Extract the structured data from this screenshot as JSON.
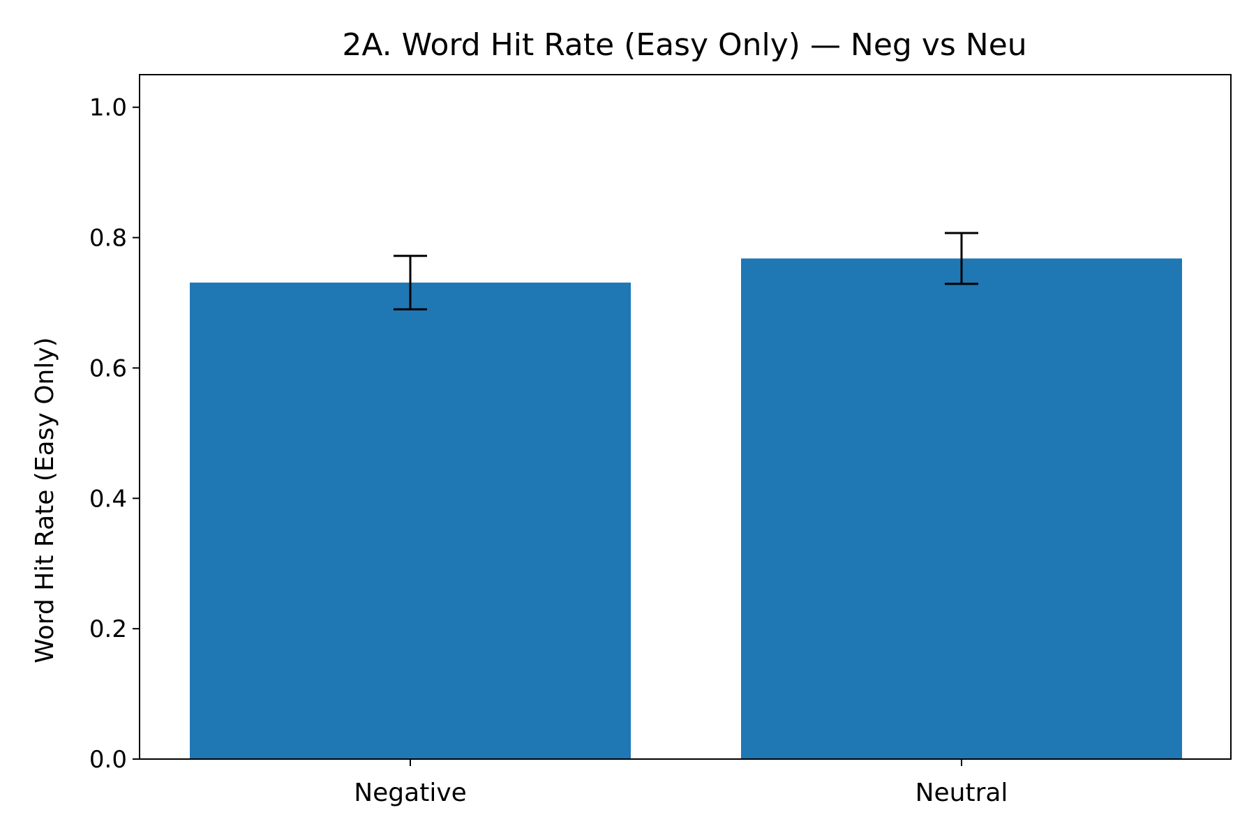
{
  "chart_data": {
    "type": "bar",
    "title": "2A. Word Hit Rate (Easy Only) — Neg vs Neu",
    "xlabel": "",
    "ylabel": "Word Hit Rate (Easy Only)",
    "categories": [
      "Negative",
      "Neutral"
    ],
    "values": [
      0.731,
      0.768
    ],
    "errors": [
      0.041,
      0.039
    ],
    "ylim": [
      0,
      1.05
    ],
    "yticks": [
      0.0,
      0.2,
      0.4,
      0.6,
      0.8,
      1.0
    ],
    "ytick_labels": [
      "0.0",
      "0.2",
      "0.4",
      "0.6",
      "0.8",
      "1.0"
    ],
    "grid": false,
    "bar_color": "#1f77b4",
    "error_color": "#000000"
  }
}
